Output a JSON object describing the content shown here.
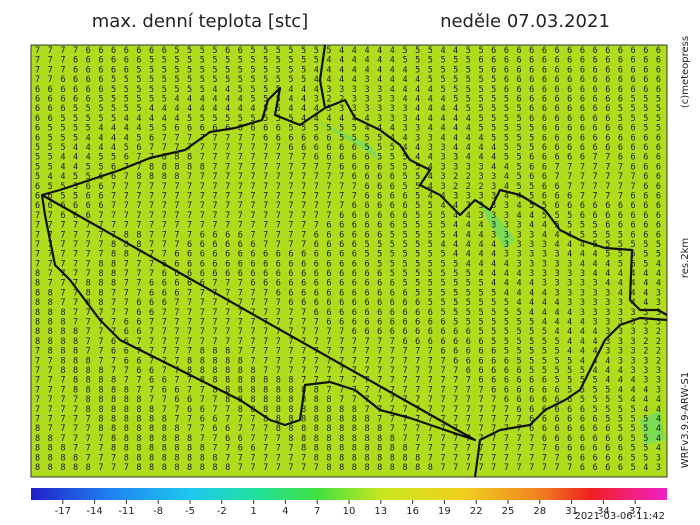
{
  "header": {
    "title": "max. denní teplota [stc]",
    "date": "neděle 07.03.2021"
  },
  "side_labels": [
    "(c)meteopress",
    "res.2km",
    "WRFv3.9.9-ARW-S1"
  ],
  "timestamp": "2021-03-06-11:42",
  "colorbar": {
    "lim": [
      -20,
      40
    ],
    "ticks": [
      -17,
      -14,
      -11,
      -8,
      -5,
      -2,
      1,
      4,
      7,
      10,
      13,
      16,
      19,
      22,
      25,
      28,
      31,
      34,
      37
    ]
  },
  "grid": {
    "rows": [
      "7 7 7 7 6 6 6 6 6 6 6 5 5 5 5 6 6 5 5 5 5 5 5 5 4 4 4 4 4 5 5 5 4 4 5 5 6 6 6 6 6 6 6 6 6 6 6 6 6 6",
      "7 7 7 6 6 6 6 6 6 5 5 5 5 5 5 5 5 5 5 5 5 5 5 4 4 4 4 4 4 5 5 5 5 5 5 6 6 6 6 6 6 6 6 6 6 6 6 6 6 6",
      "7 7 7 6 6 6 6 6 5 5 5 5 5 5 5 5 5 5 5 5 5 5 4 4 4 4 4 4 4 4 5 5 5 5 5 5 6 6 6 6 6 6 6 6 6 6 6 6 6 6",
      "7 7 6 6 6 6 5 5 5 5 5 5 5 5 5 5 5 5 5 5 5 5 4 4 4 4 3 4 4 4 4 5 5 5 5 5 5 6 6 6 6 6 6 6 6 6 6 6 6 6",
      "6 6 6 6 6 6 5 5 5 5 5 5 5 5 4 4 5 5 5 5 4 4 4 3 3 3 3 3 4 4 4 4 5 5 5 5 5 6 6 6 6 6 6 6 6 6 6 6 6 6",
      "6 6 6 6 6 5 5 5 5 5 5 4 4 4 4 4 4 5 5 5 4 4 3 2 2 3 3 3 3 4 4 4 4 5 5 5 5 5 6 6 6 6 6 6 6 6 6 5 5 5",
      "6 6 6 5 5 5 5 5 5 4 4 4 4 4 4 4 4 4 5 5 4 4 4 3 3 3 3 3 3 3 4 4 4 4 5 5 5 5 5 6 6 6 6 6 6 6 5 5 5 5",
      "6 6 5 5 5 5 5 4 4 4 4 4 5 5 5 5 5 5 5 5 5 4 4 4 4 4 4 3 3 3 4 4 4 4 4 5 5 5 5 6 6 6 6 6 6 6 5 5 5 5",
      "6 5 5 5 5 4 4 4 4 5 5 6 6 6 6 6 6 6 6 6 5 5 5 5 5 5 4 4 4 3 3 4 4 4 4 5 5 5 5 5 6 6 6 6 6 6 6 6 5 5",
      "6 5 5 5 4 4 4 4 5 6 7 7 7 7 7 7 7 7 6 6 6 6 6 6 5 5 5 5 4 4 3 3 4 4 4 4 5 5 5 5 6 6 6 6 6 6 6 6 6 6",
      "5 5 5 4 4 4 4 5 6 7 7 7 7 7 7 7 7 7 7 7 6 6 6 6 6 6 5 5 5 4 4 3 3 4 4 4 4 5 5 5 6 6 6 6 6 6 6 6 6 6",
      "5 5 4 4 4 5 5 6 7 7 8 8 8 7 7 7 7 7 7 7 7 7 6 6 6 6 6 5 5 5 4 4 3 3 4 4 4 5 5 6 6 6 6 6 7 7 6 6 6 6",
      "5 5 4 4 5 5 6 7 7 8 8 8 8 8 7 7 7 7 7 7 7 7 7 7 6 6 6 6 5 5 5 4 3 3 3 3 4 4 5 6 6 7 7 7 7 7 7 6 6 6",
      "5 4 4 5 5 6 6 7 8 8 8 8 7 7 7 7 7 7 7 7 7 7 7 7 7 6 6 6 6 5 5 4 3 2 2 3 3 4 5 6 6 7 7 7 7 7 7 7 6 6",
      "6 5 5 5 6 6 7 7 7 7 7 7 7 7 7 7 7 7 7 7 7 7 7 7 7 7 6 6 6 5 5 4 3 2 2 2 3 4 5 5 6 6 7 7 7 7 7 7 6 6",
      "6 6 5 5 6 6 7 7 7 7 7 7 7 7 7 7 7 7 7 7 7 7 7 7 7 7 6 6 6 6 5 4 4 3 3 3 3 4 4 5 6 6 6 7 7 7 7 6 6 6",
      "6 6 6 6 6 6 7 7 7 7 7 7 7 7 7 7 7 7 7 7 7 7 7 7 7 6 6 6 6 6 5 5 4 4 3 3 3 3 4 5 5 6 6 6 6 6 6 6 6 6",
      "7 7 6 6 6 7 7 7 7 7 7 7 7 7 7 7 7 7 7 7 7 7 7 7 6 6 6 6 6 6 5 5 5 4 4 3 3 3 4 4 5 5 5 6 6 6 6 6 6 6",
      "7 7 7 7 7 7 7 7 7 7 7 7 7 7 7 7 7 7 7 7 7 7 7 6 6 6 6 6 6 5 5 5 5 4 4 4 3 3 3 4 4 5 5 5 5 6 6 6 6 6",
      "7 7 7 7 7 7 7 8 8 7 7 7 7 6 6 6 6 7 7 7 7 7 6 6 6 6 6 6 5 5 5 5 5 4 4 4 3 3 3 3 4 4 4 5 5 5 5 6 6 6",
      "7 7 7 7 7 7 8 8 8 7 7 7 6 6 6 6 6 6 7 7 7 7 6 6 6 6 5 5 5 5 5 5 4 4 4 4 4 3 3 3 3 4 4 4 5 5 5 5 5 5",
      "7 7 7 7 7 7 8 8 7 7 7 6 6 6 6 6 6 6 6 6 6 6 6 6 6 6 5 5 5 5 5 5 5 4 4 4 4 3 3 3 3 3 4 4 4 5 5 5 5 5",
      "7 7 7 7 7 8 8 7 7 7 6 6 6 6 6 6 6 6 6 6 6 6 6 6 6 6 6 5 5 5 5 5 5 5 4 4 4 4 3 3 3 3 3 4 4 4 5 5 5 4",
      "8 7 7 7 7 8 8 7 7 7 6 6 6 6 6 6 6 6 6 6 6 6 6 6 6 6 6 6 5 5 5 5 5 5 5 4 4 4 4 3 3 3 3 3 4 4 4 4 4 4",
      "8 7 7 7 8 8 8 7 7 6 6 6 6 6 7 7 7 6 6 6 6 6 6 6 6 6 6 6 6 5 5 5 5 5 5 5 4 4 4 4 3 3 3 3 3 4 4 4 4 4",
      "8 8 7 7 8 8 7 7 7 6 6 6 7 7 7 7 7 7 7 6 6 6 6 6 6 6 6 6 6 6 5 5 5 5 5 5 5 4 4 4 4 3 3 3 3 3 4 4 4 3",
      "8 8 7 7 8 8 7 7 6 6 6 7 7 7 7 7 7 7 7 7 6 6 6 6 6 6 6 6 6 6 6 5 5 5 5 5 5 5 4 4 4 4 3 3 3 3 3 4 4 3",
      "8 8 8 7 7 7 7 7 6 6 7 7 7 7 7 7 7 7 7 7 7 7 6 6 6 6 6 6 6 6 6 6 5 5 5 5 5 5 5 4 4 4 4 3 3 3 3 3 3 3",
      "8 8 8 7 7 7 7 6 6 7 7 7 7 7 7 7 7 7 7 7 7 7 7 6 6 6 6 6 6 6 6 6 6 5 5 5 5 5 5 5 4 4 4 4 3 3 3 3 3 3",
      "8 8 8 8 7 7 7 6 6 7 7 7 7 7 7 7 7 7 7 7 7 7 7 7 7 6 6 6 6 6 6 6 6 6 6 5 5 5 5 5 5 4 4 4 4 3 3 3 3 2",
      "8 8 8 8 7 7 6 6 7 7 7 7 7 7 7 7 7 7 7 7 7 7 7 7 7 7 7 7 7 6 6 6 6 6 6 6 5 5 5 5 5 5 4 4 4 3 3 3 2 2",
      "7 8 8 8 7 7 6 6 7 7 7 7 7 8 8 8 7 7 7 7 7 7 7 7 7 7 7 7 7 7 7 7 6 6 6 6 6 5 5 5 5 5 4 4 4 3 3 3 2 2",
      "7 7 8 8 8 7 7 6 6 7 7 7 8 8 8 8 8 7 7 7 7 7 7 7 7 7 7 7 7 7 7 7 7 6 6 6 6 6 5 5 5 5 5 4 4 4 3 3 3 2",
      "7 7 8 8 8 8 7 7 6 6 7 7 8 8 8 8 8 8 7 7 7 7 7 7 7 7 7 7 7 7 7 7 7 7 6 6 6 6 6 5 5 5 5 5 4 4 4 3 3 3",
      "7 7 7 8 8 8 8 7 7 6 6 7 7 8 8 8 8 8 8 8 8 7 7 7 7 7 7 7 7 7 7 7 7 7 7 6 6 6 6 6 6 5 5 5 5 4 4 4 3 3",
      "7 7 7 8 8 8 8 8 7 7 6 6 7 7 8 8 8 8 8 8 8 8 8 7 7 7 7 7 7 7 7 7 7 7 7 7 6 6 6 6 6 6 5 5 5 5 4 4 4 3",
      "7 7 7 7 8 8 8 8 8 7 7 6 6 7 7 8 8 8 8 8 8 8 8 8 7 7 7 7 7 7 7 7 7 7 7 7 7 6 6 6 6 6 6 5 5 5 5 4 4 4",
      "7 7 7 7 8 8 8 8 8 8 7 7 6 6 7 7 8 8 8 8 8 8 8 8 8 8 7 7 7 7 7 7 7 7 7 7 7 7 6 6 6 6 6 6 5 5 5 5 4 4",
      "7 7 7 7 7 8 8 8 8 8 8 7 7 6 6 7 7 7 8 8 8 8 8 8 8 8 8 7 7 7 7 7 7 7 7 7 7 7 7 6 6 6 6 6 6 5 5 5 5 4",
      "8 7 7 7 7 8 8 8 8 8 8 8 7 7 6 6 7 7 7 8 8 8 8 8 8 8 8 8 7 7 7 7 7 7 7 7 7 7 7 6 6 6 6 6 6 6 5 5 5 4",
      "8 8 7 7 7 7 8 8 8 8 8 8 8 7 7 6 6 7 7 7 8 8 8 8 8 8 8 8 8 7 7 7 7 7 7 7 7 7 7 7 6 6 6 6 6 6 6 5 5 4",
      "8 8 8 7 7 7 8 8 8 8 8 8 8 8 7 7 6 6 7 7 7 8 8 8 8 8 8 8 8 8 7 7 7 7 7 7 7 7 7 7 7 6 6 6 6 6 6 5 5 4",
      "8 8 8 8 7 7 7 8 8 8 8 8 8 8 8 7 7 7 7 7 7 7 8 8 8 8 8 8 8 8 8 7 7 7 7 7 7 7 7 7 7 7 6 6 6 6 6 5 5 3",
      "8 8 8 8 8 7 7 7 8 8 8 8 8 8 8 8 7 7 7 7 7 7 7 8 8 8 8 8 8 8 8 8 7 7 7 7 7 7 7 7 7 7 7 6 6 6 6 5 4 3"
    ]
  }
}
